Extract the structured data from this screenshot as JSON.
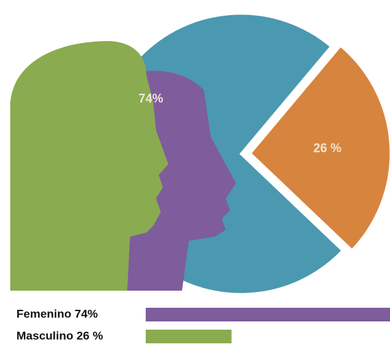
{
  "chart_data": [
    {
      "type": "pie",
      "values": [
        74,
        26
      ],
      "value_labels": [
        "74%",
        "26 %"
      ],
      "colors": [
        "#4a99b0",
        "#d7843e"
      ]
    },
    {
      "type": "bar",
      "categories": [
        "Femenino 74%",
        "Masculino 26 %"
      ],
      "values": [
        74,
        26
      ],
      "colors": [
        "#7f5c9c",
        "#8aab4f"
      ]
    }
  ]
}
